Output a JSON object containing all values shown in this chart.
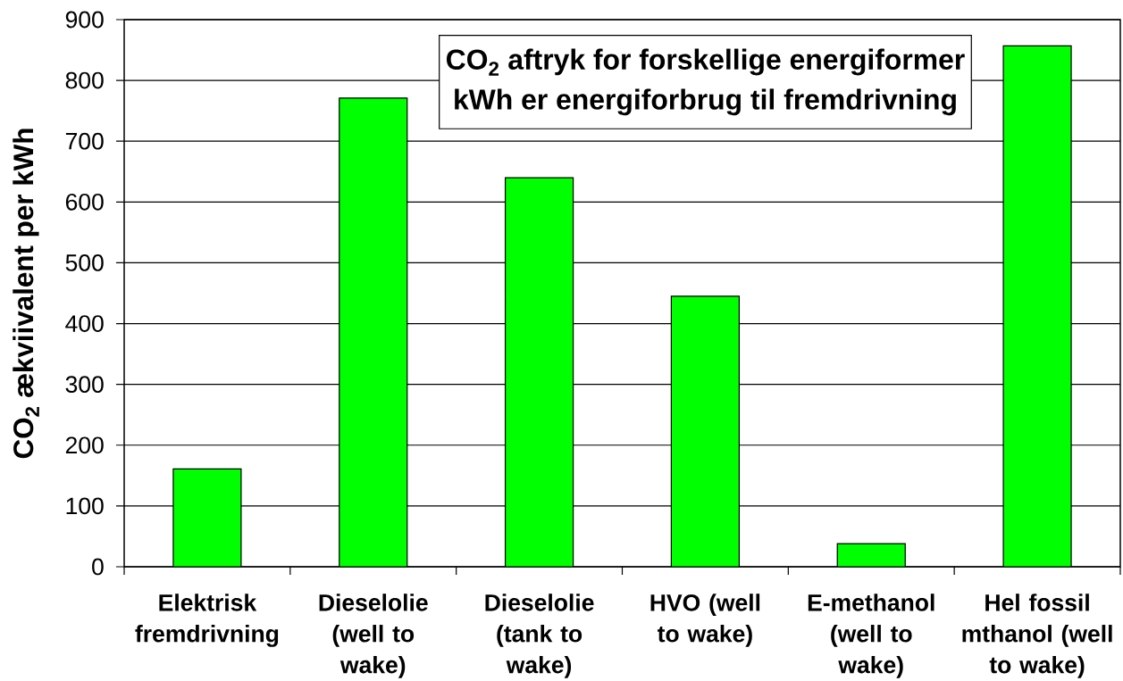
{
  "chart_data": {
    "type": "bar",
    "title": "CO$_{2}$ aftryk for forskellige energiformer",
    "subtitle": "kWh er energiforbrug til fremdrivning",
    "ylabel": "CO$_{2}$ ækviivalent per kWh",
    "categories": [
      "Elektrisk fremdrivning",
      "Dieselolie (well to wake)",
      "Dieselolie (tank to wake)",
      "HVO (well to wake)",
      "E-methanol (well to wake)",
      "Hel fossil mthanol (well to wake)"
    ],
    "values": [
      161,
      771,
      640,
      445,
      38,
      857
    ],
    "color": "#00ff00",
    "ylim": [
      0,
      900
    ],
    "yticks": [
      0,
      100,
      200,
      300,
      400,
      500,
      600,
      700,
      800,
      900
    ],
    "grid": "y"
  }
}
